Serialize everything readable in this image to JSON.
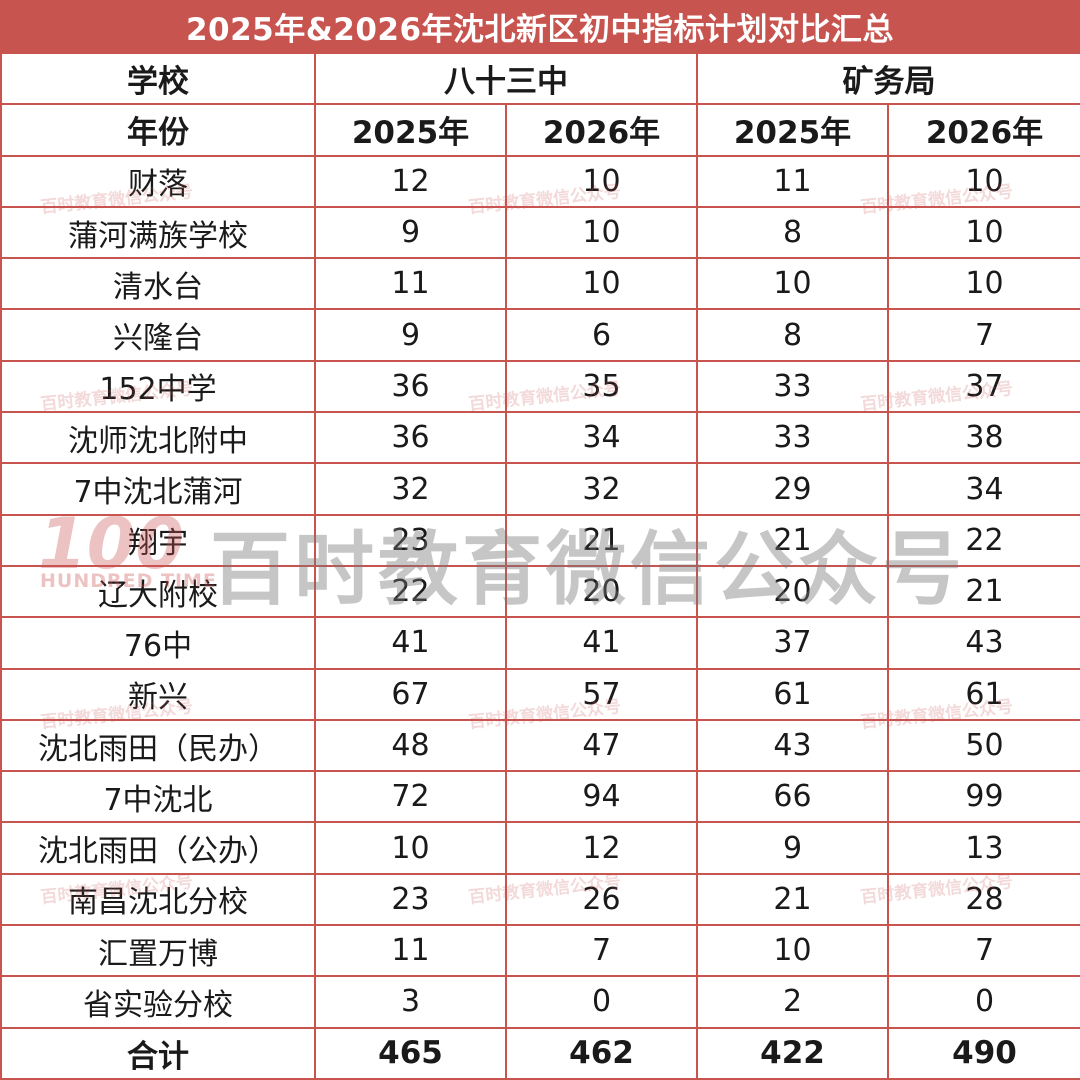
{
  "title": "2025年&2026年沈北新区初中指标计划对比汇总",
  "header": {
    "school_label": "学校",
    "year_label": "年份",
    "group1": "八十三中",
    "group2": "矿务局",
    "years": [
      "2025年",
      "2026年",
      "2025年",
      "2026年"
    ]
  },
  "rows": [
    {
      "school": "财落",
      "v": [
        "12",
        "10",
        "11",
        "10"
      ]
    },
    {
      "school": "蒲河满族学校",
      "v": [
        "9",
        "10",
        "8",
        "10"
      ]
    },
    {
      "school": "清水台",
      "v": [
        "11",
        "10",
        "10",
        "10"
      ]
    },
    {
      "school": "兴隆台",
      "v": [
        "9",
        "6",
        "8",
        "7"
      ]
    },
    {
      "school": "152中学",
      "v": [
        "36",
        "35",
        "33",
        "37"
      ]
    },
    {
      "school": "沈师沈北附中",
      "v": [
        "36",
        "34",
        "33",
        "38"
      ]
    },
    {
      "school": "7中沈北蒲河",
      "v": [
        "32",
        "32",
        "29",
        "34"
      ]
    },
    {
      "school": "翔宇",
      "v": [
        "23",
        "21",
        "21",
        "22"
      ]
    },
    {
      "school": "辽大附校",
      "v": [
        "22",
        "20",
        "20",
        "21"
      ]
    },
    {
      "school": "76中",
      "v": [
        "41",
        "41",
        "37",
        "43"
      ]
    },
    {
      "school": "新兴",
      "v": [
        "67",
        "57",
        "61",
        "61"
      ]
    },
    {
      "school": "沈北雨田（民办）",
      "v": [
        "48",
        "47",
        "43",
        "50"
      ]
    },
    {
      "school": "7中沈北",
      "v": [
        "72",
        "94",
        "66",
        "99"
      ]
    },
    {
      "school": "沈北雨田（公办）",
      "v": [
        "10",
        "12",
        "9",
        "13"
      ]
    },
    {
      "school": "南昌沈北分校",
      "v": [
        "23",
        "26",
        "21",
        "28"
      ]
    },
    {
      "school": "汇置万博",
      "v": [
        "11",
        "7",
        "10",
        "7"
      ]
    },
    {
      "school": "省实验分校",
      "v": [
        "3",
        "0",
        "2",
        "0"
      ]
    }
  ],
  "total": {
    "label": "合计",
    "v": [
      "465",
      "462",
      "422",
      "490"
    ]
  },
  "watermark": {
    "big": "百时教育微信公众号",
    "small": "百时教育微信公众号",
    "logo": "100",
    "logo_text": "HUNDRED TIME"
  },
  "colors": {
    "accent": "#c85450"
  }
}
